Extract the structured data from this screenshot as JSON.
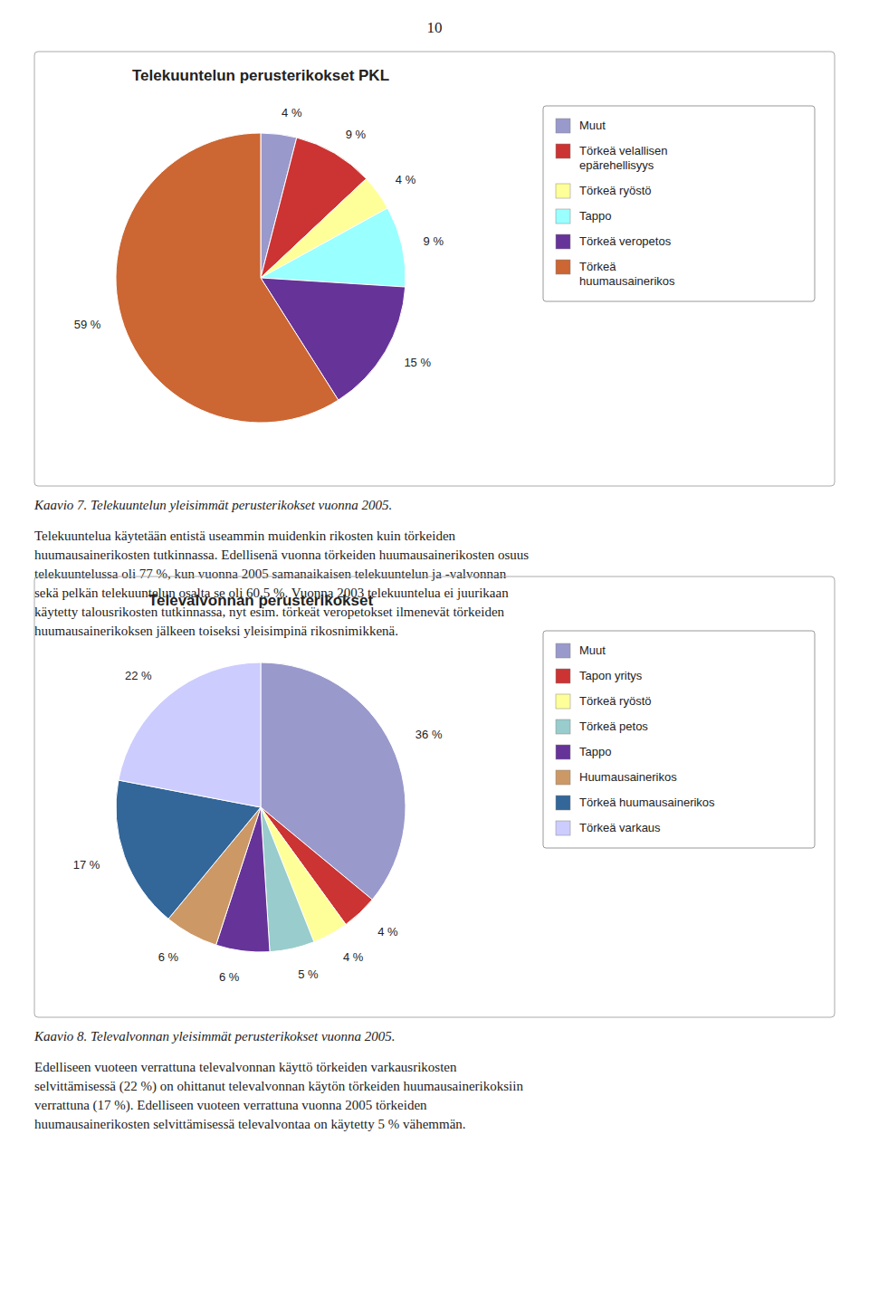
{
  "page_number": "10",
  "chart_data": [
    {
      "type": "pie",
      "title": "Telekuuntelun perusterikokset PKL",
      "categories": [
        "Muut",
        "Törkeä velallisen\nepärehellisyys",
        "Törkeä ryöstö",
        "Tappo",
        "Törkeä veropetos",
        "Törkeä\nhuumausainerikos"
      ],
      "values": [
        4,
        9,
        4,
        9,
        15,
        59
      ],
      "value_labels": [
        "4 %",
        "9 %",
        "4 %",
        "9 %",
        "15 %",
        "59 %"
      ],
      "colors": [
        "#9999CC",
        "#CC3333",
        "#FFFF99",
        "#99FFFF",
        "#663399",
        "#CC6633"
      ],
      "data_labels": true,
      "legend": "right",
      "caption": "Kaavio 7. Telekuuntelun yleisimmät perusterikokset vuonna 2005.",
      "text_lines": [
        "Telekuuntelua käytetään entistä useammin muidenkin rikosten kuin törkeiden",
        "huumausainerikosten tutkinnassa. Edellisenä vuonna törkeiden huumausainerikosten osuus",
        "telekuuntelussa oli 77 %, kun vuonna 2005 samanaikaisen telekuuntelun ja -valvonnan",
        "sekä pelkän telekuuntelun osalta se oli 60,5 %. Vuonna 2003 telekuuntelua ei juurikaan",
        "käytetty talousrikosten tutkinnassa, nyt esim. törkeät veropetokset ilmenevät törkeiden",
        "huumausainerikoksen jälkeen toiseksi yleisimpinä rikosnimikkenä."
      ]
    },
    {
      "type": "pie",
      "title": "Televalvonnan perusterikokset",
      "categories": [
        "Muut",
        "Tapon yritys",
        "Törkeä ryöstö",
        "Törkeä petos",
        "Tappo",
        "Huumausainerikos",
        "Törkeä huumausainerikos",
        "Törkeä varkaus"
      ],
      "values": [
        36,
        4,
        4,
        5,
        6,
        6,
        17,
        22
      ],
      "value_labels": [
        "36 %",
        "4 %",
        "4 %",
        "5 %",
        "6 %",
        "6 %",
        "17 %",
        "22 %"
      ],
      "colors": [
        "#9999CC",
        "#CC3333",
        "#FFFF99",
        "#99CCCC",
        "#663399",
        "#CC9966",
        "#336699",
        "#CCCCFF"
      ],
      "data_labels": true,
      "legend": "right",
      "caption": "Kaavio 8. Televalvonnan yleisimmät perusterikokset vuonna 2005.",
      "text_lines": [
        "Edelliseen vuoteen verrattuna televalvonnan käyttö törkeiden varkausrikosten",
        "selvittämisessä (22 %) on ohittanut televalvonnan käytön törkeiden huumausainerikoksiin",
        "verrattuna (17 %). Edelliseen vuoteen verrattuna vuonna 2005 törkeiden",
        "huumausainerikosten selvittämisessä televalvontaa on käytetty 5 % vähemmän."
      ]
    }
  ]
}
